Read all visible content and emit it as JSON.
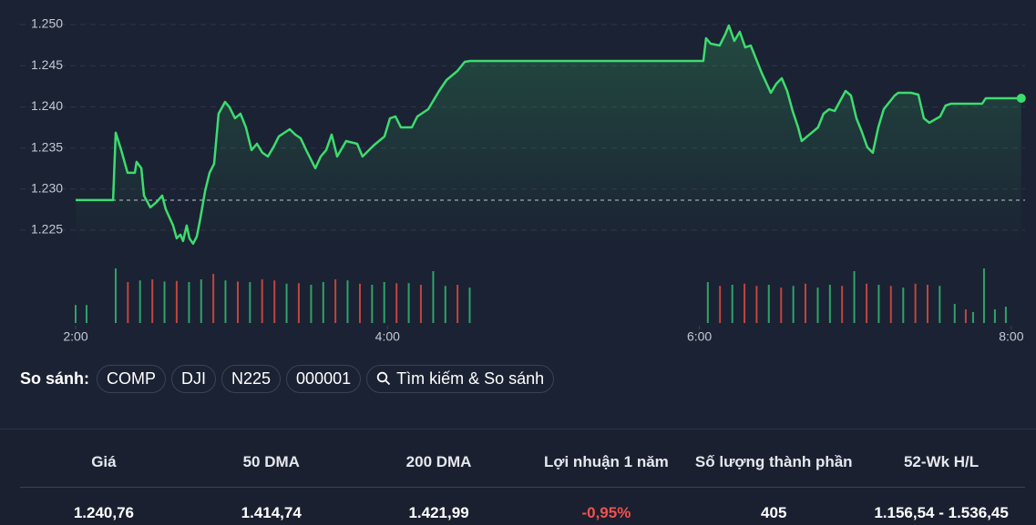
{
  "chart_data": {
    "type": "line",
    "x": [
      2.0,
      2.24,
      2.257,
      2.292,
      2.333,
      2.38,
      2.391,
      2.421,
      2.438,
      2.479,
      2.52,
      2.555,
      2.578,
      2.625,
      2.648,
      2.672,
      2.689,
      2.712,
      2.73,
      2.753,
      2.777,
      2.8,
      2.83,
      2.859,
      2.888,
      2.917,
      2.958,
      2.987,
      3.022,
      3.057,
      3.092,
      3.128,
      3.163,
      3.198,
      3.233,
      3.268,
      3.303,
      3.373,
      3.408,
      3.443,
      3.478,
      3.537,
      3.572,
      3.607,
      3.642,
      3.677,
      3.735,
      3.805,
      3.84,
      3.91,
      3.981,
      4.016,
      4.051,
      4.086,
      4.156,
      4.191,
      4.261,
      4.331,
      4.378,
      4.448,
      4.495,
      4.53,
      6.025,
      6.043,
      6.072,
      6.13,
      6.165,
      6.189,
      6.224,
      6.259,
      6.294,
      6.329,
      6.364,
      6.399,
      6.458,
      6.493,
      6.528,
      6.563,
      6.598,
      6.633,
      6.656,
      6.691,
      6.761,
      6.796,
      6.832,
      6.867,
      6.937,
      6.972,
      7.007,
      7.042,
      7.077,
      7.112,
      7.147,
      7.182,
      7.252,
      7.275,
      7.357,
      7.404,
      7.439,
      7.474,
      7.544,
      7.579,
      7.614,
      7.813,
      7.836,
      8.064
    ],
    "values": [
      1228.65,
      1228.65,
      1236.84,
      1234.74,
      1231.97,
      1231.97,
      1233.3,
      1232.53,
      1229.21,
      1227.77,
      1228.43,
      1229.21,
      1227.55,
      1225.56,
      1224.01,
      1224.45,
      1223.68,
      1225.56,
      1224.01,
      1223.35,
      1224.23,
      1226.44,
      1229.76,
      1231.97,
      1233.08,
      1239.16,
      1240.6,
      1239.94,
      1238.61,
      1239.16,
      1237.5,
      1234.74,
      1235.51,
      1234.41,
      1233.96,
      1235.07,
      1236.4,
      1237.28,
      1236.62,
      1236.17,
      1234.74,
      1232.53,
      1233.96,
      1234.74,
      1236.62,
      1233.96,
      1235.84,
      1235.51,
      1233.96,
      1235.29,
      1236.4,
      1238.61,
      1238.83,
      1237.5,
      1237.5,
      1238.83,
      1239.71,
      1241.93,
      1243.25,
      1244.36,
      1245.47,
      1245.58,
      1245.58,
      1248.34,
      1247.68,
      1247.46,
      1248.78,
      1249.89,
      1248.01,
      1249.12,
      1247.23,
      1247.46,
      1245.8,
      1244.14,
      1241.7,
      1242.81,
      1243.47,
      1241.93,
      1239.49,
      1237.5,
      1235.84,
      1236.4,
      1237.5,
      1239.16,
      1239.71,
      1239.49,
      1241.93,
      1241.37,
      1238.61,
      1236.95,
      1235.07,
      1234.41,
      1237.5,
      1239.71,
      1241.37,
      1241.7,
      1241.7,
      1241.48,
      1238.61,
      1238.06,
      1238.83,
      1240.16,
      1240.38,
      1240.38,
      1241.04,
      1241.04
    ],
    "xlim": [
      2,
      8.1
    ],
    "ylim": [
      1223,
      1251
    ],
    "xticks": [
      {
        "value": 2,
        "label": "2:00"
      },
      {
        "value": 4,
        "label": "4:00"
      },
      {
        "value": 6,
        "label": "6:00"
      },
      {
        "value": 8,
        "label": "8:00"
      }
    ],
    "yticks": [
      {
        "value": 1225,
        "label": "1.225"
      },
      {
        "value": 1230,
        "label": "1.230"
      },
      {
        "value": 1235,
        "label": "1.235"
      },
      {
        "value": 1240,
        "label": "1.240"
      },
      {
        "value": 1245,
        "label": "1.245"
      },
      {
        "value": 1250,
        "label": "1.250"
      }
    ],
    "reference_line": 1228.65,
    "color": "#3ddc6f",
    "grid": true,
    "volume": {
      "x": [
        2.0,
        2.07,
        2.257,
        2.335,
        2.413,
        2.492,
        2.57,
        2.648,
        2.727,
        2.805,
        2.883,
        2.961,
        3.04,
        3.118,
        3.196,
        3.275,
        3.353,
        3.431,
        3.51,
        3.588,
        3.666,
        3.744,
        3.823,
        3.901,
        3.979,
        4.058,
        4.136,
        4.214,
        4.293,
        4.371,
        4.449,
        4.527,
        6.054,
        6.132,
        6.211,
        6.289,
        6.367,
        6.445,
        6.524,
        6.602,
        6.68,
        6.759,
        6.837,
        6.915,
        6.993,
        7.072,
        7.15,
        7.228,
        7.307,
        7.385,
        7.463,
        7.541,
        7.637,
        7.708,
        7.755,
        7.825,
        7.895,
        7.965
      ],
      "values": [
        33,
        33,
        100,
        75,
        78,
        80,
        76,
        77,
        75,
        80,
        90,
        78,
        76,
        75,
        80,
        78,
        72,
        73,
        70,
        75,
        80,
        78,
        72,
        70,
        75,
        73,
        73,
        70,
        95,
        68,
        70,
        65,
        75,
        68,
        70,
        72,
        68,
        70,
        65,
        68,
        72,
        65,
        70,
        68,
        95,
        72,
        70,
        68,
        65,
        72,
        70,
        68,
        35,
        25,
        20,
        100,
        25,
        30
      ],
      "colors": [
        "#2ea36a",
        "#2ea36a",
        "#2ea36a",
        "#c1453f",
        "#2ea36a",
        "#c1453f",
        "#2ea36a",
        "#c1453f",
        "#2ea36a",
        "#2ea36a",
        "#c1453f",
        "#2ea36a",
        "#c1453f",
        "#2ea36a",
        "#c1453f",
        "#c1453f",
        "#2ea36a",
        "#c1453f",
        "#2ea36a",
        "#2ea36a",
        "#c1453f",
        "#2ea36a",
        "#c1453f",
        "#2ea36a",
        "#2ea36a",
        "#c1453f",
        "#2ea36a",
        "#c1453f",
        "#2ea36a",
        "#2ea36a",
        "#c1453f",
        "#2ea36a",
        "#2ea36a",
        "#c1453f",
        "#2ea36a",
        "#c1453f",
        "#c1453f",
        "#2ea36a",
        "#c1453f",
        "#2ea36a",
        "#c1453f",
        "#2ea36a",
        "#2ea36a",
        "#c1453f",
        "#2ea36a",
        "#c1453f",
        "#2ea36a",
        "#c1453f",
        "#2ea36a",
        "#c1453f",
        "#c1453f",
        "#2ea36a",
        "#2ea36a",
        "#c1453f",
        "#2ea36a",
        "#2ea36a",
        "#2ea36a",
        "#2ea36a"
      ],
      "ylim": [
        0,
        100
      ]
    }
  },
  "compare": {
    "label": "So sánh:",
    "chips": [
      "COMP",
      "DJI",
      "N225",
      "000001"
    ],
    "search": "Tìm kiếm & So sánh"
  },
  "stats": {
    "headers": [
      "Giá",
      "50 DMA",
      "200 DMA",
      "Lợi nhuận 1 năm",
      "Số lượng thành phần",
      "52-Wk H/L"
    ],
    "values": [
      "1.240,76",
      "1.414,74",
      "1.421,99",
      "-0,95%",
      "405",
      "1.156,54 - 1.536,45"
    ],
    "value_colors": [
      "#ffffff",
      "#ffffff",
      "#ffffff",
      "#f0524f",
      "#ffffff",
      "#ffffff"
    ]
  }
}
